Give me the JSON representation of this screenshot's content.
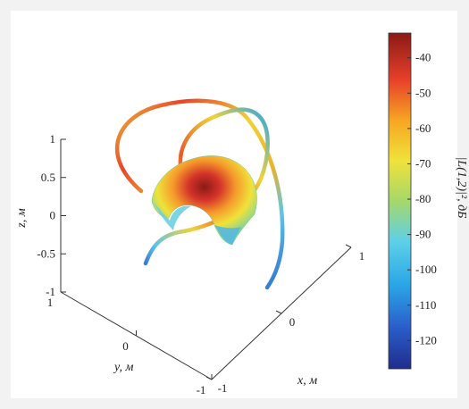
{
  "chart_data": {
    "type": "surface3d",
    "axes": {
      "x": {
        "label": "x, м",
        "range": [
          -1,
          1
        ],
        "ticks": [
          "-1",
          "0",
          "1"
        ]
      },
      "y": {
        "label": "y, м",
        "range": [
          -1,
          1
        ],
        "ticks": [
          "1",
          "0",
          "-1"
        ]
      },
      "z": {
        "label": "z, м",
        "range": [
          -1,
          1
        ],
        "ticks": [
          "1",
          "0.5",
          "0",
          "-0.5",
          "-1"
        ]
      }
    },
    "colorbar": {
      "label": "|L(1,2)|², дБ",
      "range": [
        -128,
        -33
      ],
      "ticks": [
        "-40",
        "-50",
        "-60",
        "-70",
        "-80",
        "-90",
        "-100",
        "-110",
        "-120"
      ],
      "tick_values": [
        -40,
        -50,
        -60,
        -70,
        -80,
        -90,
        -100,
        -110,
        -120
      ],
      "colormap": "jet"
    },
    "grid": false,
    "series": [
      {
        "kind": "ring",
        "description_visible": false
      },
      {
        "kind": "ring",
        "description_visible": false
      },
      {
        "kind": "surface-patch",
        "description_visible": false
      }
    ]
  },
  "colors": {
    "background": "#f2f2f2",
    "panel": "#ffffff"
  }
}
